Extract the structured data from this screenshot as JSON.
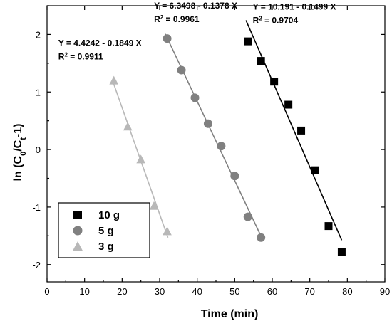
{
  "chart_data": {
    "type": "scatter",
    "title": "",
    "xlabel": "Time (min)",
    "ylabel_parts": [
      "ln (C",
      "0",
      "/C",
      "t",
      "-1)"
    ],
    "xlim": [
      0,
      90
    ],
    "ylim": [
      -2.3,
      2.5
    ],
    "xticks": [
      0,
      10,
      20,
      30,
      40,
      50,
      60,
      70,
      80,
      90
    ],
    "yticks": [
      -2,
      -1,
      0,
      1,
      2
    ],
    "legend_position": "bottom-left",
    "series": [
      {
        "name": "10 g",
        "marker": "square",
        "color": "#000000",
        "x": [
          53.5,
          57.0,
          60.5,
          64.3,
          67.7,
          71.3,
          75.0,
          78.5
        ],
        "y": [
          1.88,
          1.54,
          1.18,
          0.78,
          0.33,
          -0.36,
          -1.33,
          -1.78
        ],
        "fit": {
          "equation": "Y = 10.191 - 0.1499 X",
          "r2_label": "R",
          "r2_sup": "2",
          "r2_value": " = 0.9704",
          "intercept": 10.191,
          "slope": -0.1499,
          "x_range": [
            53.0,
            78.5
          ]
        }
      },
      {
        "name": "5 g",
        "marker": "circle",
        "color": "#808080",
        "x": [
          32.0,
          35.8,
          39.4,
          42.9,
          46.4,
          50.0,
          53.5,
          57.0
        ],
        "y": [
          1.93,
          1.38,
          0.9,
          0.45,
          0.06,
          -0.46,
          -1.17,
          -1.53
        ],
        "fit": {
          "equation": "Y = 6.3498 - 0.1378 X",
          "r2_label": "R",
          "r2_sup": "2",
          "r2_value": " = 0.9961",
          "intercept": 6.3498,
          "slope": -0.1378,
          "x_range": [
            31.5,
            57.0
          ]
        }
      },
      {
        "name": "3 g",
        "marker": "triangle",
        "color": "#b8b8b8",
        "x": [
          17.8,
          21.5,
          25.0,
          28.5,
          32.0
        ],
        "y": [
          1.2,
          0.4,
          -0.17,
          -0.98,
          -1.42
        ],
        "fit": {
          "equation": "Y = 4.4242 - 0.1849 X",
          "r2_label": "R",
          "r2_sup": "2",
          "r2_value": " = 0.9911",
          "intercept": 4.4242,
          "slope": -0.1849,
          "x_range": [
            17.5,
            32.2
          ]
        }
      }
    ]
  }
}
